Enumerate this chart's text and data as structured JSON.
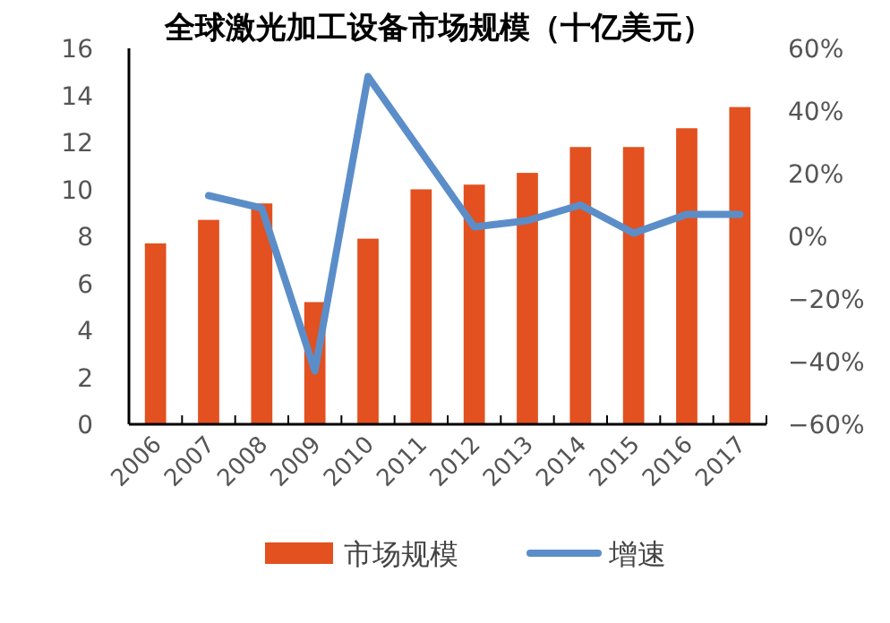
{
  "chart_data": {
    "type": "bar",
    "title": "全球激光加工设备市场规模（十亿美元）",
    "categories": [
      "2006",
      "2007",
      "2008",
      "2009",
      "2010",
      "2011",
      "2012",
      "2013",
      "2014",
      "2015",
      "2016",
      "2017"
    ],
    "series": [
      {
        "name": "市场规模",
        "color": "#e2511f",
        "values": [
          7.7,
          8.7,
          9.4,
          5.2,
          7.9,
          10.0,
          10.2,
          10.7,
          11.8,
          11.8,
          12.6,
          13.5
        ]
      },
      {
        "name": "增速",
        "type": "line",
        "axis": "y2",
        "color": "#5b8ec9",
        "values": [
          null,
          13,
          9,
          -43,
          51,
          27,
          3,
          5,
          10,
          1,
          7,
          7
        ]
      }
    ],
    "ylim": [
      0,
      16
    ],
    "yticks": [
      0,
      2,
      4,
      6,
      8,
      10,
      12,
      14,
      16
    ],
    "y2lim": [
      -60,
      60
    ],
    "y2ticks": [
      {
        "value": -60,
        "label": "−60%"
      },
      {
        "value": -40,
        "label": "−40%"
      },
      {
        "value": -20,
        "label": "−20%"
      },
      {
        "value": 0,
        "label": "0%"
      },
      {
        "value": 20,
        "label": "20%"
      },
      {
        "value": 40,
        "label": "40%"
      },
      {
        "value": 60,
        "label": "60%"
      }
    ],
    "legend": "bottom",
    "grid": false
  }
}
